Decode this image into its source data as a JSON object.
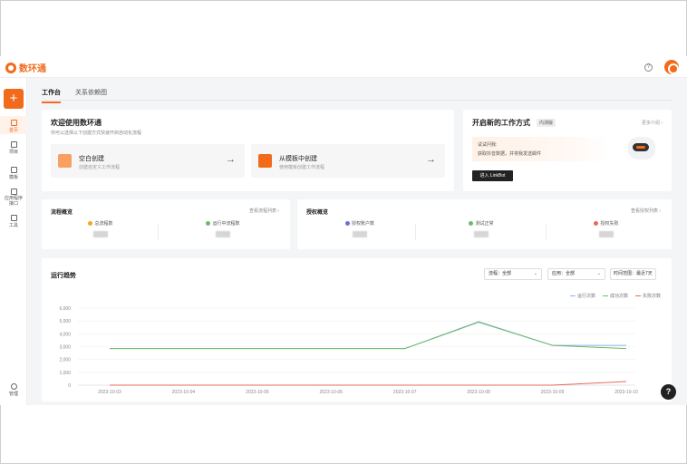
{
  "app": {
    "name": "数环通"
  },
  "sidebar": {
    "items": [
      {
        "label": "首页",
        "icon": "home-icon"
      },
      {
        "label": "项目",
        "icon": "project-icon"
      },
      {
        "label": "模板",
        "icon": "template-icon"
      },
      {
        "label": "应用程序接口",
        "icon": "api-icon"
      },
      {
        "label": "工具",
        "icon": "tool-icon"
      }
    ],
    "bottom_label": "管理"
  },
  "tabs": [
    {
      "label": "工作台"
    },
    {
      "label": "关系依赖图"
    }
  ],
  "welcome": {
    "title": "欢迎使用数环通",
    "subtitle": "你可以选择以下创建方式快速开启自动化流程",
    "blank": {
      "title": "空白创建",
      "desc": "创建自定义工作流程"
    },
    "template": {
      "title": "从模板中创建",
      "desc": "使用模板创建工作流程"
    }
  },
  "new_work": {
    "title": "开启新的工作方式",
    "badge": "内测版",
    "more": "更多介绍 ›",
    "line1": "试试问我:",
    "line2": "获取抖音数据，并将我发送邮件",
    "button": "进入 LinkBot"
  },
  "flow_overview": {
    "title": "流程概览",
    "link": "查看流程列表 ›",
    "stats": [
      {
        "label": "总流程数"
      },
      {
        "label": "运行中流程数"
      }
    ]
  },
  "auth_overview": {
    "title": "授权概览",
    "link": "查看授权列表 ›",
    "stats": [
      {
        "label": "授权账户数"
      },
      {
        "label": "测试正常"
      },
      {
        "label": "授权失败"
      }
    ]
  },
  "trend": {
    "title": "运行趋势",
    "flow_filter": "流程：全部",
    "app_filter": "应用：全部",
    "range_label": "时间范围：最近7天"
  },
  "colors": {
    "accent": "#f26b1d",
    "run": "#8fb3e8",
    "success": "#6dbb6a",
    "fail": "#e86a5a"
  },
  "chart_data": {
    "type": "line",
    "categories": [
      "2023-10-03",
      "2023-10-04",
      "2023-10-05",
      "2023-10-06",
      "2023-10-07",
      "2023-10-08",
      "2023-10-09",
      "2023-10-10"
    ],
    "ylim": [
      0,
      6000
    ],
    "yticks": [
      0,
      1000,
      2000,
      3000,
      4000,
      5000,
      6000
    ],
    "ytick_labels": [
      "0",
      "1,000",
      "2,000",
      "3,000",
      "4,000",
      "5,000",
      "6,000"
    ],
    "series": [
      {
        "name": "运行次数",
        "color": "#8fb3e8",
        "values": [
          2850,
          2850,
          2850,
          2850,
          2850,
          4950,
          3100,
          3100
        ]
      },
      {
        "name": "成功次数",
        "color": "#6dbb6a",
        "values": [
          2850,
          2850,
          2850,
          2850,
          2850,
          4900,
          3100,
          2850
        ]
      },
      {
        "name": "失败次数",
        "color": "#e86a5a",
        "values": [
          0,
          0,
          0,
          0,
          0,
          0,
          0,
          280
        ]
      }
    ],
    "legend": "top-right",
    "grid": true
  }
}
